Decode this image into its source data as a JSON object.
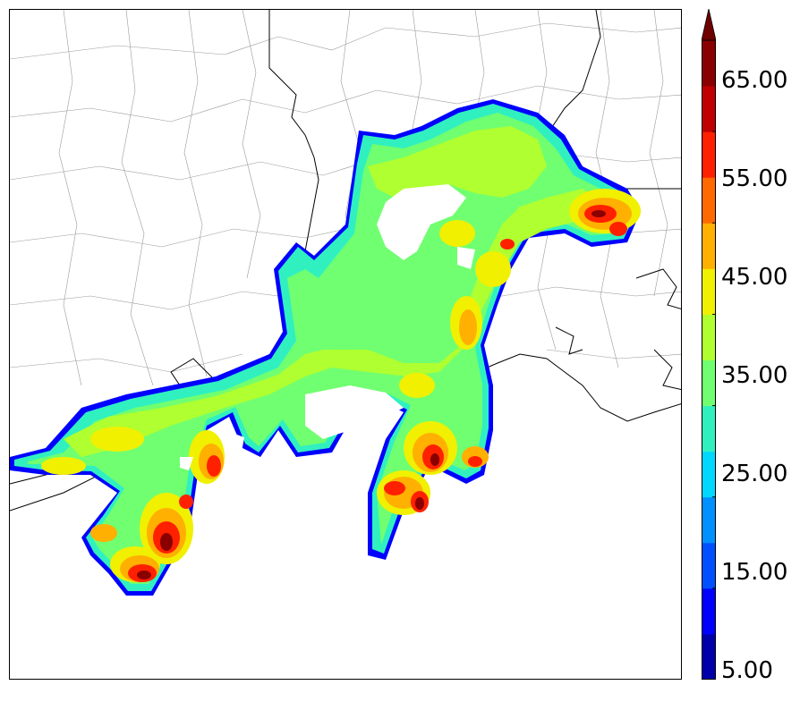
{
  "map": {
    "description_type": "filled-contour radar reflectivity map over a Gulf Coast region with county/state boundaries"
  },
  "colorbar": {
    "colors": [
      "#0000aa",
      "#0000ff",
      "#0050ff",
      "#0090ff",
      "#00d8ff",
      "#30f0c0",
      "#70ff70",
      "#b0ff30",
      "#f0f000",
      "#ffb000",
      "#ff6a00",
      "#ff2000",
      "#c00000",
      "#8a0000"
    ],
    "extend_arrow_color": "#6e0000",
    "tick_labels": [
      "5.00",
      "15.00",
      "25.00",
      "35.00",
      "45.00",
      "55.00",
      "65.00"
    ]
  },
  "chart_data": {
    "type": "heatmap",
    "colorbar_range": [
      5,
      70
    ],
    "colorbar_ticks": [
      5,
      15,
      25,
      35,
      45,
      55,
      65
    ],
    "colorbar_interval": 5,
    "colorbar_extend": "max"
  }
}
